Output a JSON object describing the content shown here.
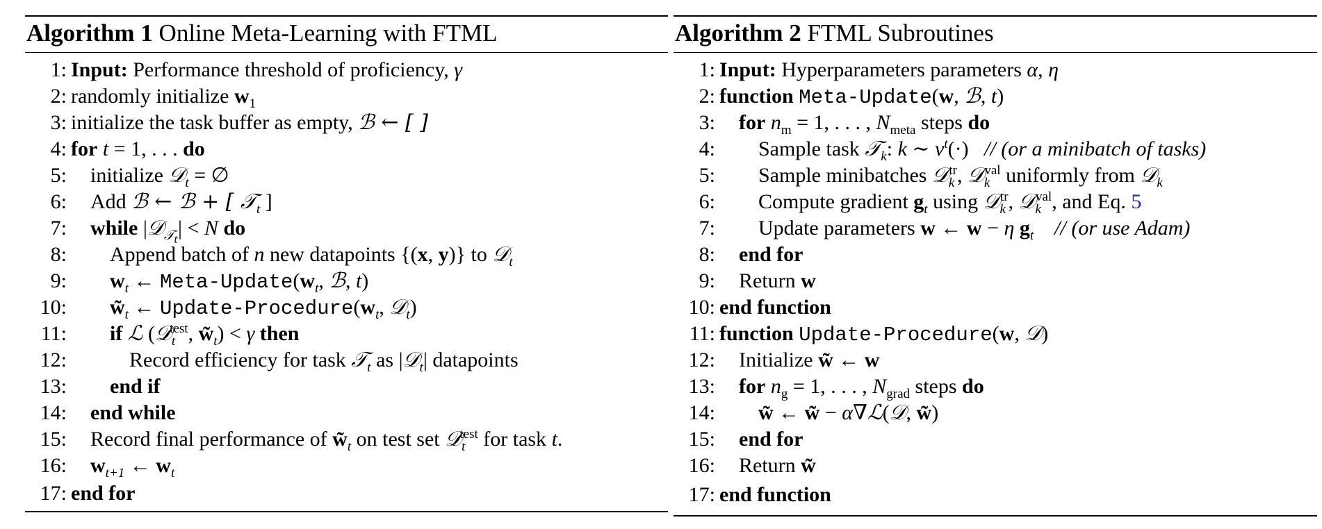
{
  "algo1": {
    "number": "Algorithm 1",
    "title": "Online Meta-Learning with FTML",
    "lines": [
      {
        "n": "1:",
        "indent": 0
      },
      {
        "n": "2:",
        "indent": 0
      },
      {
        "n": "3:",
        "indent": 0
      },
      {
        "n": "4:",
        "indent": 0
      },
      {
        "n": "5:",
        "indent": 1
      },
      {
        "n": "6:",
        "indent": 1
      },
      {
        "n": "7:",
        "indent": 1
      },
      {
        "n": "8:",
        "indent": 2
      },
      {
        "n": "9:",
        "indent": 2
      },
      {
        "n": "10:",
        "indent": 2
      },
      {
        "n": "11:",
        "indent": 2
      },
      {
        "n": "12:",
        "indent": 3
      },
      {
        "n": "13:",
        "indent": 2
      },
      {
        "n": "14:",
        "indent": 1
      },
      {
        "n": "15:",
        "indent": 1
      },
      {
        "n": "16:",
        "indent": 1
      },
      {
        "n": "17:",
        "indent": 0
      }
    ],
    "text": {
      "l1_kw": "Input:",
      "l1": " Performance threshold of proficiency, ",
      "l1_sym": "γ",
      "l2": "randomly initialize ",
      "l3": "initialize the task buffer as empty, ",
      "l3_sym": "ℬ ← [ ]",
      "l4_kw": "for",
      "l4": " t = 1, . . . ",
      "l4_kw2": "do",
      "l5": "initialize ",
      "l5_sym": "𝒟",
      "l6": "Add ",
      "l6_sym": "ℬ ← ℬ + [ 𝒯",
      "l7_kw": "while",
      "l7_kw2": "do",
      "l8": "Append batch of ",
      "l8_b": " new datapoints ",
      "l8_c": " to ",
      "l9_fn": "Meta-Update",
      "l10_fn": "Update-Procedure",
      "l11_kw": "if",
      "l11_kw2": "then",
      "l12": "Record efficiency for task ",
      "l12_b": " as ",
      "l12_c": " datapoints",
      "l13_kw": "end if",
      "l14_kw": "end while",
      "l15": "Record final performance of ",
      "l15_b": " on test set ",
      "l15_c": " for task ",
      "l17_kw": "end for"
    }
  },
  "algo2": {
    "number": "Algorithm 2",
    "title": "FTML Subroutines",
    "text": {
      "l1_kw": "Input:",
      "l1": " Hyperparameters parameters ",
      "l2_kw": "function",
      "l2_fn": "Meta-Update",
      "l3_kw": "for",
      "l3_b": " steps ",
      "l3_kw2": "do",
      "l4": "Sample task ",
      "l4_cmt": "// (or a minibatch of tasks)",
      "l5": "Sample minibatches ",
      "l5_b": " uniformly from ",
      "l6": "Compute gradient ",
      "l6_b": " using ",
      "l6_c": ", and Eq. ",
      "l6_ref": "5",
      "l7": "Update parameters ",
      "l7_cmt": "// (or use Adam)",
      "l8_kw": "end for",
      "l9": "Return ",
      "l10_kw": "end function",
      "l11_kw": "function",
      "l11_fn": "Update-Procedure",
      "l12": "Initialize ",
      "l13_kw": "for",
      "l13_b": " steps ",
      "l13_kw2": "do",
      "l15_kw": "end for",
      "l16": "Return ",
      "l17_kw": "end function"
    }
  }
}
